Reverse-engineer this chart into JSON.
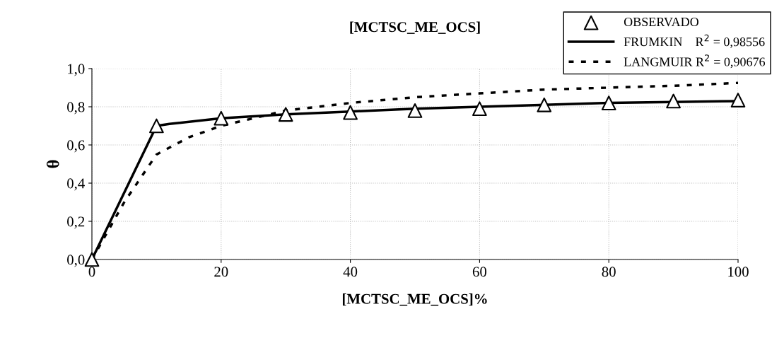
{
  "chart_data": {
    "type": "line",
    "title": "[MCTSC_ME_OCS]",
    "xlabel": "[MCTSC_ME_OCS]%",
    "ylabel": "θ",
    "xlim": [
      0,
      100
    ],
    "xticks": [
      0,
      20,
      40,
      60,
      80,
      100
    ],
    "ylim": [
      0,
      1.0
    ],
    "yticks": [
      {
        "value": 0,
        "label": "0,0"
      },
      {
        "value": 0.2,
        "label": "0,2"
      },
      {
        "value": 0.4,
        "label": "0,4"
      },
      {
        "value": 0.6,
        "label": "0,6"
      },
      {
        "value": 0.8,
        "label": "0,8"
      },
      {
        "value": 1.0,
        "label": "1,0"
      }
    ],
    "grid": true,
    "legend": "top right",
    "series": [
      {
        "name": "OBSERVADO",
        "type": "scatter",
        "marker": "triangle",
        "color": "#000000",
        "x": [
          0,
          10,
          20,
          30,
          40,
          50,
          60,
          70,
          80,
          90,
          100
        ],
        "values": [
          0,
          0.7,
          0.74,
          0.76,
          0.77,
          0.78,
          0.79,
          0.81,
          0.82,
          0.83,
          0.835
        ]
      },
      {
        "name": "FRUMKIN    R$^{2}$ = 0,98556",
        "line_style": "solid",
        "color": "#000000",
        "x": [
          0,
          10,
          12,
          20,
          30,
          40,
          50,
          60,
          70,
          80,
          90,
          100
        ],
        "values": [
          0,
          0.7,
          0.71,
          0.74,
          0.76,
          0.775,
          0.79,
          0.8,
          0.81,
          0.82,
          0.825,
          0.83
        ]
      },
      {
        "name": "LANGMUIR R$^{2}$ = 0,90676",
        "line_style": "dashed",
        "color": "#000000",
        "x": [
          0,
          5,
          10,
          15,
          20,
          30,
          40,
          50,
          60,
          70,
          80,
          90,
          100
        ],
        "values": [
          0,
          0.3,
          0.55,
          0.64,
          0.7,
          0.78,
          0.82,
          0.85,
          0.87,
          0.89,
          0.9,
          0.91,
          0.925
        ]
      }
    ]
  }
}
